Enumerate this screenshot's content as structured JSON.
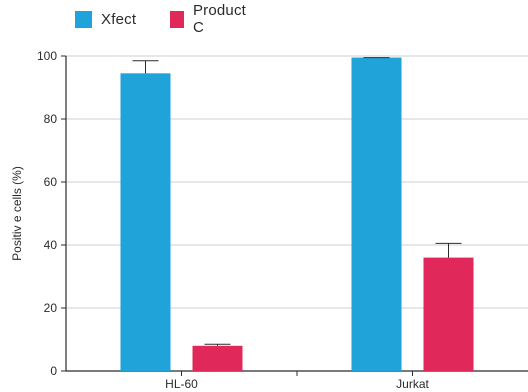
{
  "chart_data": {
    "type": "bar",
    "categories": [
      "HL-60",
      "Jurkat"
    ],
    "series": [
      {
        "name": "Xfect",
        "color": "#1fa3d9",
        "values": [
          94.5,
          99.5
        ],
        "errors": [
          4,
          0
        ]
      },
      {
        "name": "Product C",
        "color": "#e0285a",
        "values": [
          8,
          36
        ],
        "errors": [
          0.5,
          4.5
        ]
      }
    ],
    "ylabel": "Positiv e cells (%)",
    "xlabel": "",
    "ylim": [
      0,
      100
    ],
    "yticks": [
      0,
      20,
      40,
      60,
      80,
      100
    ],
    "grid": true,
    "legend_position": "top-left"
  }
}
